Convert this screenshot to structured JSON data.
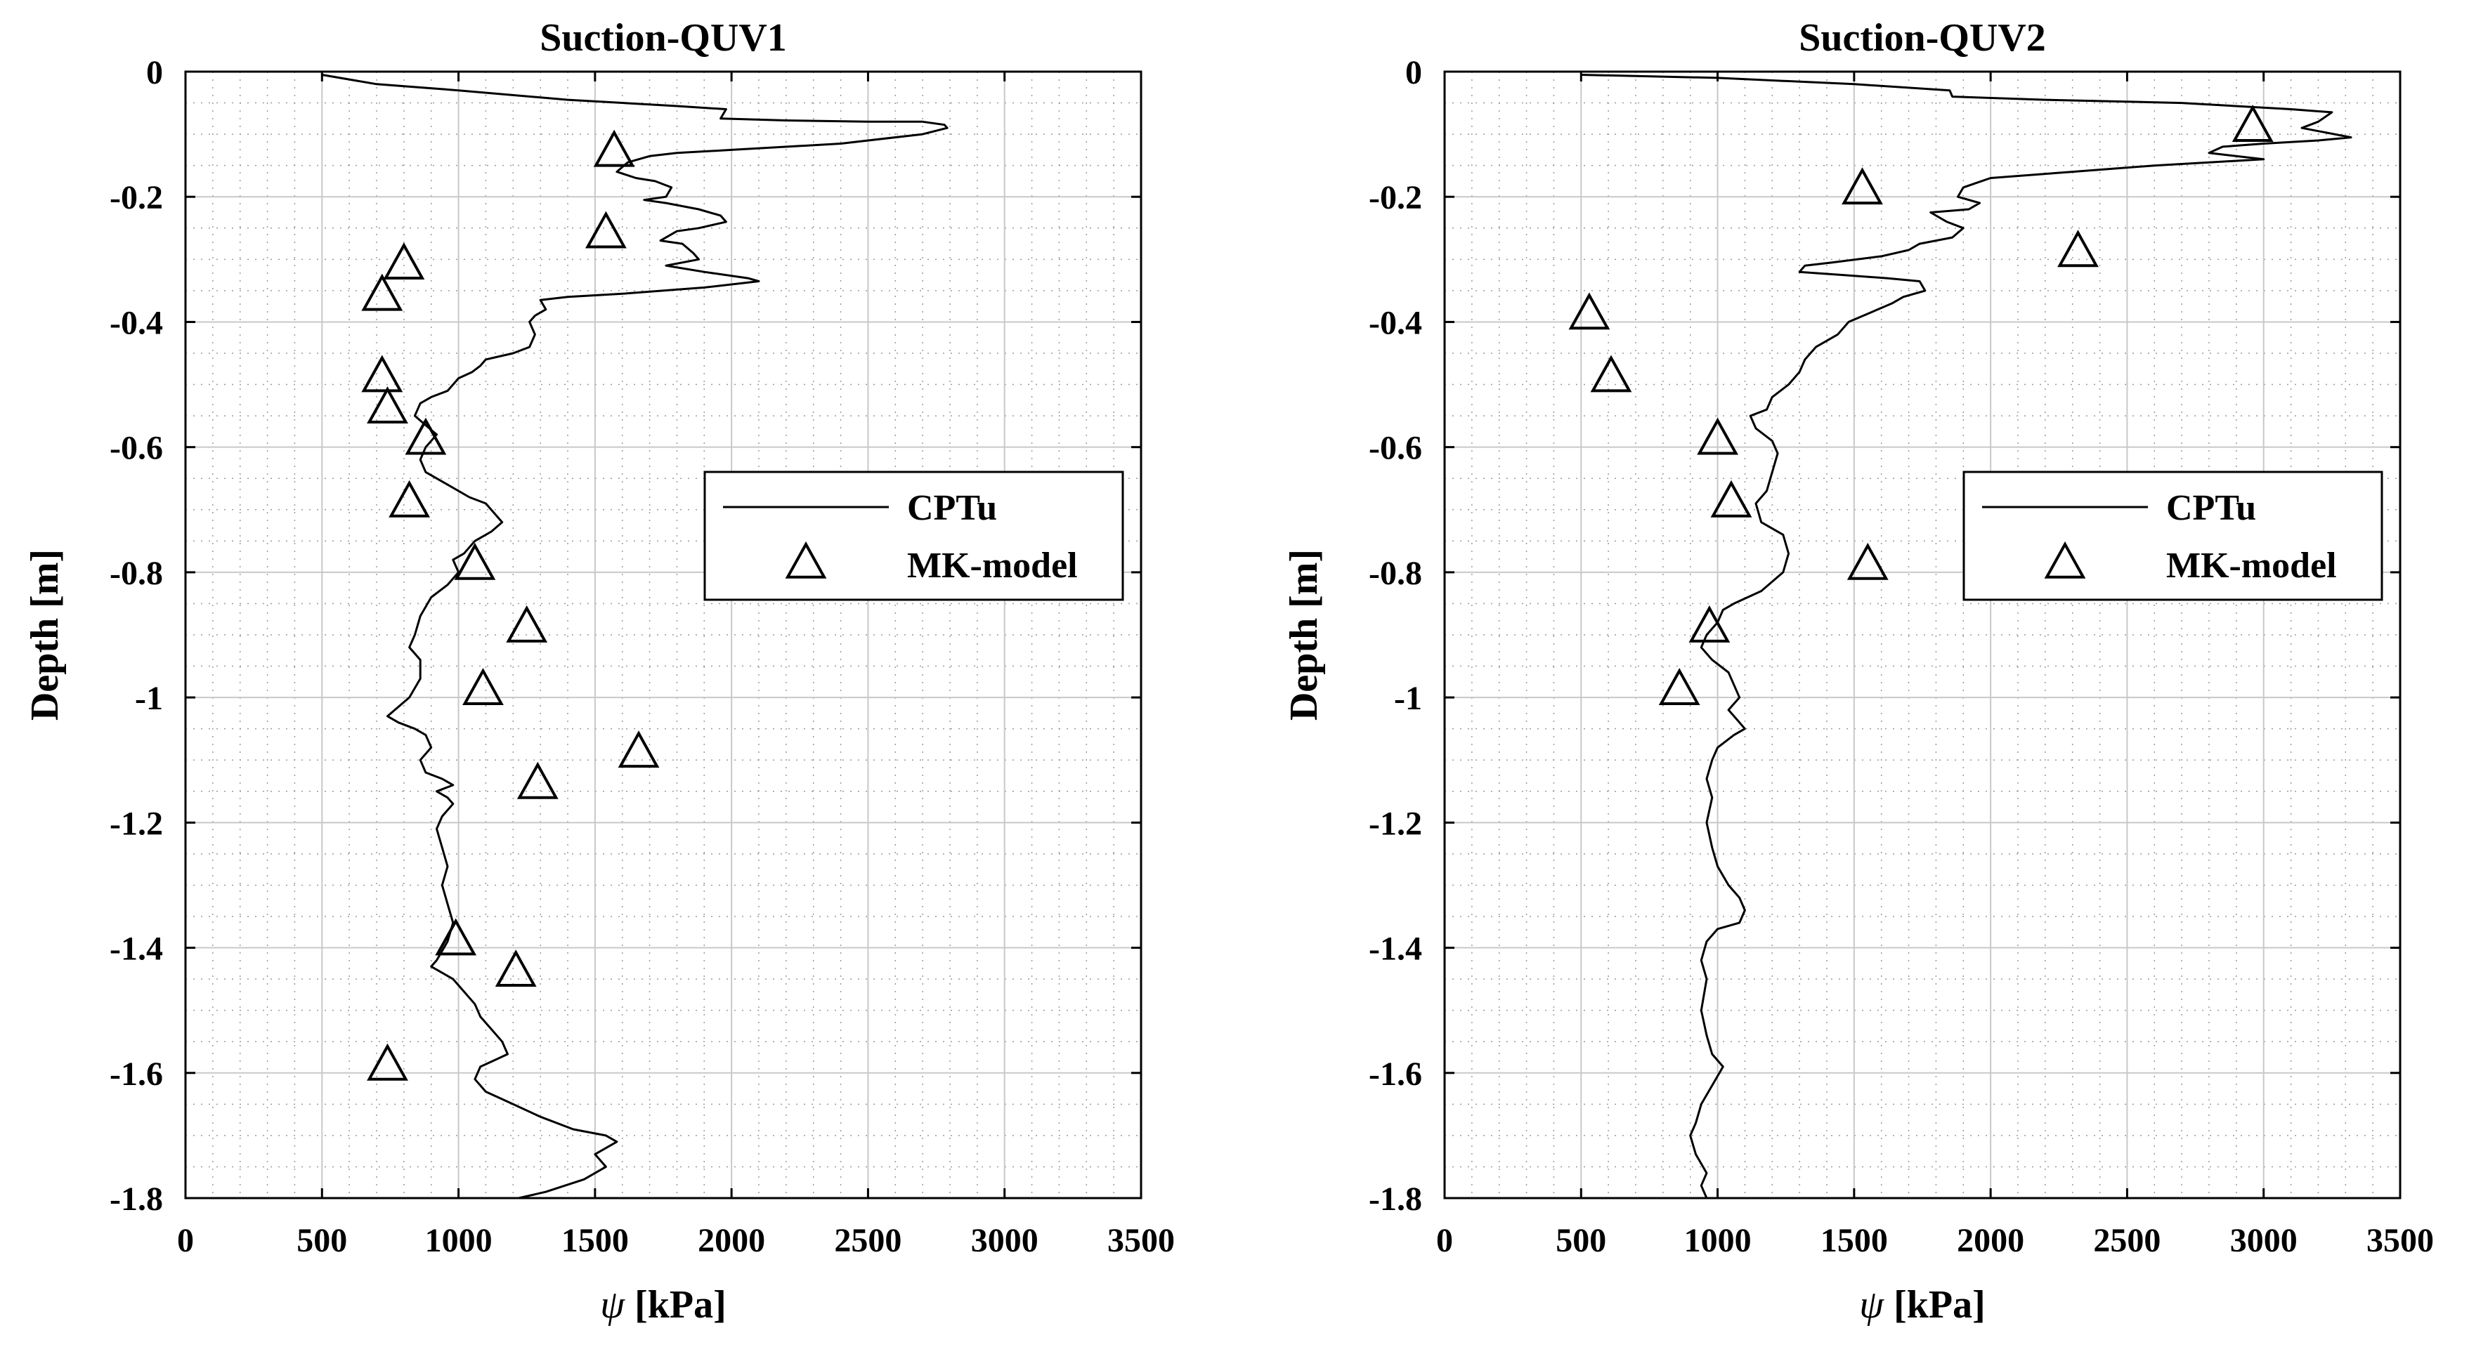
{
  "figure": {
    "background": "#ffffff",
    "line_color": "#000000",
    "grid_color": "#c8c8c8",
    "minor_grid_color": "#9a9a9a"
  },
  "chart_data": [
    {
      "type": "line",
      "title": "Suction-QUV1",
      "xlabel_symbol": "ψ",
      "xlabel_unit": "[kPa]",
      "ylabel": "Depth [m]",
      "xlim": [
        0,
        3500
      ],
      "ylim": [
        -1.8,
        0
      ],
      "xticks": [
        0,
        500,
        1000,
        1500,
        2000,
        2500,
        3000,
        3500
      ],
      "xtick_labels": [
        "0",
        "500",
        "1000",
        "1500",
        "2000",
        "2500",
        "3000",
        "3500"
      ],
      "yticks": [
        0,
        -0.2,
        -0.4,
        -0.6,
        -0.8,
        -1,
        -1.2,
        -1.4,
        -1.6,
        -1.8
      ],
      "ytick_labels": [
        "0",
        "-0.2",
        "-0.4",
        "-0.6",
        "-0.8",
        "-1",
        "-1.2",
        "-1.4",
        "-1.6",
        "-1.8"
      ],
      "grid": true,
      "legend": {
        "location": "center-right",
        "entries": [
          "CPTu",
          "MK-model"
        ]
      },
      "series": [
        {
          "name": "CPTu",
          "marker": "line",
          "points": [
            [
              500,
              -0.005
            ],
            [
              700,
              -0.02
            ],
            [
              1000,
              -0.03
            ],
            [
              1400,
              -0.045
            ],
            [
              1800,
              -0.055
            ],
            [
              1980,
              -0.06
            ],
            [
              1960,
              -0.075
            ],
            [
              2200,
              -0.078
            ],
            [
              2500,
              -0.08
            ],
            [
              2700,
              -0.08
            ],
            [
              2780,
              -0.085
            ],
            [
              2790,
              -0.09
            ],
            [
              2700,
              -0.1
            ],
            [
              2400,
              -0.115
            ],
            [
              2000,
              -0.125
            ],
            [
              1800,
              -0.13
            ],
            [
              1700,
              -0.135
            ],
            [
              1620,
              -0.145
            ],
            [
              1580,
              -0.16
            ],
            [
              1650,
              -0.17
            ],
            [
              1720,
              -0.175
            ],
            [
              1780,
              -0.185
            ],
            [
              1760,
              -0.2
            ],
            [
              1680,
              -0.205
            ],
            [
              1760,
              -0.21
            ],
            [
              1880,
              -0.22
            ],
            [
              1960,
              -0.23
            ],
            [
              1980,
              -0.24
            ],
            [
              1880,
              -0.25
            ],
            [
              1800,
              -0.255
            ],
            [
              1740,
              -0.27
            ],
            [
              1820,
              -0.275
            ],
            [
              1860,
              -0.29
            ],
            [
              1880,
              -0.3
            ],
            [
              1820,
              -0.305
            ],
            [
              1760,
              -0.31
            ],
            [
              1900,
              -0.32
            ],
            [
              2060,
              -0.33
            ],
            [
              2100,
              -0.335
            ],
            [
              1900,
              -0.345
            ],
            [
              1600,
              -0.355
            ],
            [
              1400,
              -0.36
            ],
            [
              1300,
              -0.365
            ],
            [
              1320,
              -0.38
            ],
            [
              1280,
              -0.39
            ],
            [
              1260,
              -0.4
            ],
            [
              1280,
              -0.42
            ],
            [
              1260,
              -0.44
            ],
            [
              1200,
              -0.45
            ],
            [
              1100,
              -0.46
            ],
            [
              1080,
              -0.47
            ],
            [
              1050,
              -0.48
            ],
            [
              1000,
              -0.49
            ],
            [
              980,
              -0.5
            ],
            [
              960,
              -0.51
            ],
            [
              900,
              -0.52
            ],
            [
              860,
              -0.53
            ],
            [
              840,
              -0.55
            ],
            [
              880,
              -0.565
            ],
            [
              920,
              -0.58
            ],
            [
              880,
              -0.6
            ],
            [
              860,
              -0.62
            ],
            [
              880,
              -0.64
            ],
            [
              960,
              -0.66
            ],
            [
              1040,
              -0.68
            ],
            [
              1100,
              -0.69
            ],
            [
              1160,
              -0.72
            ],
            [
              1120,
              -0.735
            ],
            [
              1060,
              -0.75
            ],
            [
              1020,
              -0.77
            ],
            [
              980,
              -0.78
            ],
            [
              1000,
              -0.8
            ],
            [
              960,
              -0.82
            ],
            [
              900,
              -0.84
            ],
            [
              860,
              -0.87
            ],
            [
              840,
              -0.9
            ],
            [
              820,
              -0.92
            ],
            [
              860,
              -0.94
            ],
            [
              860,
              -0.97
            ],
            [
              820,
              -1.0
            ],
            [
              740,
              -1.03
            ],
            [
              780,
              -1.04
            ],
            [
              840,
              -1.05
            ],
            [
              880,
              -1.06
            ],
            [
              900,
              -1.08
            ],
            [
              860,
              -1.1
            ],
            [
              880,
              -1.12
            ],
            [
              940,
              -1.13
            ],
            [
              980,
              -1.14
            ],
            [
              920,
              -1.15
            ],
            [
              960,
              -1.16
            ],
            [
              980,
              -1.17
            ],
            [
              940,
              -1.19
            ],
            [
              920,
              -1.21
            ],
            [
              940,
              -1.24
            ],
            [
              960,
              -1.27
            ],
            [
              940,
              -1.3
            ],
            [
              960,
              -1.33
            ],
            [
              980,
              -1.36
            ],
            [
              960,
              -1.39
            ],
            [
              920,
              -1.42
            ],
            [
              900,
              -1.43
            ],
            [
              940,
              -1.44
            ],
            [
              980,
              -1.45
            ],
            [
              1020,
              -1.47
            ],
            [
              1060,
              -1.49
            ],
            [
              1080,
              -1.51
            ],
            [
              1120,
              -1.53
            ],
            [
              1160,
              -1.55
            ],
            [
              1180,
              -1.57
            ],
            [
              1130,
              -1.58
            ],
            [
              1080,
              -1.59
            ],
            [
              1060,
              -1.61
            ],
            [
              1100,
              -1.63
            ],
            [
              1200,
              -1.65
            ],
            [
              1300,
              -1.67
            ],
            [
              1420,
              -1.69
            ],
            [
              1540,
              -1.7
            ],
            [
              1580,
              -1.71
            ],
            [
              1500,
              -1.73
            ],
            [
              1540,
              -1.75
            ],
            [
              1460,
              -1.77
            ],
            [
              1320,
              -1.79
            ],
            [
              1220,
              -1.8
            ]
          ]
        },
        {
          "name": "MK-model",
          "marker": "triangle",
          "points": [
            [
              1570,
              -0.13
            ],
            [
              1540,
              -0.26
            ],
            [
              800,
              -0.31
            ],
            [
              720,
              -0.36
            ],
            [
              720,
              -0.49
            ],
            [
              740,
              -0.54
            ],
            [
              880,
              -0.59
            ],
            [
              820,
              -0.69
            ],
            [
              1060,
              -0.79
            ],
            [
              1250,
              -0.89
            ],
            [
              1090,
              -0.99
            ],
            [
              1660,
              -1.09
            ],
            [
              1290,
              -1.14
            ],
            [
              990,
              -1.39
            ],
            [
              1210,
              -1.44
            ],
            [
              740,
              -1.59
            ]
          ]
        }
      ]
    },
    {
      "type": "line",
      "title": "Suction-QUV2",
      "xlabel_symbol": "ψ",
      "xlabel_unit": "[kPa]",
      "ylabel": "Depth [m]",
      "xlim": [
        0,
        3500
      ],
      "ylim": [
        -1.8,
        0
      ],
      "xticks": [
        0,
        500,
        1000,
        1500,
        2000,
        2500,
        3000,
        3500
      ],
      "xtick_labels": [
        "0",
        "500",
        "1000",
        "1500",
        "2000",
        "2500",
        "3000",
        "3500"
      ],
      "yticks": [
        0,
        -0.2,
        -0.4,
        -0.6,
        -0.8,
        -1,
        -1.2,
        -1.4,
        -1.6,
        -1.8
      ],
      "ytick_labels": [
        "0",
        "-0.2",
        "-0.4",
        "-0.6",
        "-0.8",
        "-1",
        "-1.2",
        "-1.4",
        "-1.6",
        "-1.8"
      ],
      "grid": true,
      "legend": {
        "location": "center-right",
        "entries": [
          "CPTu",
          "MK-model"
        ]
      },
      "series": [
        {
          "name": "CPTu",
          "marker": "line",
          "points": [
            [
              500,
              -0.005
            ],
            [
              1000,
              -0.01
            ],
            [
              1500,
              -0.02
            ],
            [
              1850,
              -0.03
            ],
            [
              1860,
              -0.04
            ],
            [
              2200,
              -0.045
            ],
            [
              2700,
              -0.05
            ],
            [
              3100,
              -0.06
            ],
            [
              3250,
              -0.065
            ],
            [
              3200,
              -0.08
            ],
            [
              3140,
              -0.09
            ],
            [
              3320,
              -0.105
            ],
            [
              3200,
              -0.11
            ],
            [
              3000,
              -0.115
            ],
            [
              2850,
              -0.12
            ],
            [
              2800,
              -0.13
            ],
            [
              3000,
              -0.14
            ],
            [
              2600,
              -0.15
            ],
            [
              2300,
              -0.16
            ],
            [
              2000,
              -0.17
            ],
            [
              1900,
              -0.185
            ],
            [
              1880,
              -0.2
            ],
            [
              1960,
              -0.21
            ],
            [
              1920,
              -0.22
            ],
            [
              1780,
              -0.225
            ],
            [
              1840,
              -0.24
            ],
            [
              1900,
              -0.25
            ],
            [
              1860,
              -0.265
            ],
            [
              1740,
              -0.275
            ],
            [
              1700,
              -0.285
            ],
            [
              1600,
              -0.295
            ],
            [
              1420,
              -0.305
            ],
            [
              1320,
              -0.31
            ],
            [
              1300,
              -0.32
            ],
            [
              1460,
              -0.325
            ],
            [
              1620,
              -0.33
            ],
            [
              1740,
              -0.335
            ],
            [
              1760,
              -0.35
            ],
            [
              1680,
              -0.36
            ],
            [
              1640,
              -0.37
            ],
            [
              1560,
              -0.385
            ],
            [
              1480,
              -0.4
            ],
            [
              1440,
              -0.42
            ],
            [
              1360,
              -0.44
            ],
            [
              1320,
              -0.46
            ],
            [
              1300,
              -0.48
            ],
            [
              1260,
              -0.5
            ],
            [
              1200,
              -0.52
            ],
            [
              1180,
              -0.54
            ],
            [
              1120,
              -0.55
            ],
            [
              1140,
              -0.57
            ],
            [
              1200,
              -0.59
            ],
            [
              1220,
              -0.61
            ],
            [
              1200,
              -0.64
            ],
            [
              1180,
              -0.67
            ],
            [
              1140,
              -0.69
            ],
            [
              1160,
              -0.72
            ],
            [
              1240,
              -0.74
            ],
            [
              1260,
              -0.77
            ],
            [
              1240,
              -0.8
            ],
            [
              1160,
              -0.83
            ],
            [
              1060,
              -0.85
            ],
            [
              1020,
              -0.86
            ],
            [
              1000,
              -0.88
            ],
            [
              960,
              -0.9
            ],
            [
              940,
              -0.92
            ],
            [
              980,
              -0.94
            ],
            [
              1040,
              -0.96
            ],
            [
              1060,
              -0.98
            ],
            [
              1080,
              -1.0
            ],
            [
              1040,
              -1.02
            ],
            [
              1060,
              -1.03
            ],
            [
              1100,
              -1.05
            ],
            [
              1060,
              -1.06
            ],
            [
              1000,
              -1.08
            ],
            [
              980,
              -1.1
            ],
            [
              960,
              -1.13
            ],
            [
              980,
              -1.16
            ],
            [
              960,
              -1.2
            ],
            [
              980,
              -1.24
            ],
            [
              1000,
              -1.27
            ],
            [
              1040,
              -1.3
            ],
            [
              1080,
              -1.32
            ],
            [
              1100,
              -1.34
            ],
            [
              1080,
              -1.36
            ],
            [
              1000,
              -1.37
            ],
            [
              960,
              -1.39
            ],
            [
              940,
              -1.42
            ],
            [
              960,
              -1.45
            ],
            [
              940,
              -1.5
            ],
            [
              960,
              -1.54
            ],
            [
              980,
              -1.57
            ],
            [
              1020,
              -1.59
            ],
            [
              980,
              -1.62
            ],
            [
              940,
              -1.65
            ],
            [
              920,
              -1.68
            ],
            [
              900,
              -1.7
            ],
            [
              920,
              -1.73
            ],
            [
              960,
              -1.76
            ],
            [
              940,
              -1.78
            ],
            [
              960,
              -1.8
            ]
          ]
        },
        {
          "name": "MK-model",
          "marker": "triangle",
          "points": [
            [
              2960,
              -0.09
            ],
            [
              1530,
              -0.19
            ],
            [
              2320,
              -0.29
            ],
            [
              530,
              -0.39
            ],
            [
              610,
              -0.49
            ],
            [
              1000,
              -0.59
            ],
            [
              1050,
              -0.69
            ],
            [
              1550,
              -0.79
            ],
            [
              970,
              -0.89
            ],
            [
              860,
              -0.99
            ]
          ]
        }
      ]
    }
  ]
}
